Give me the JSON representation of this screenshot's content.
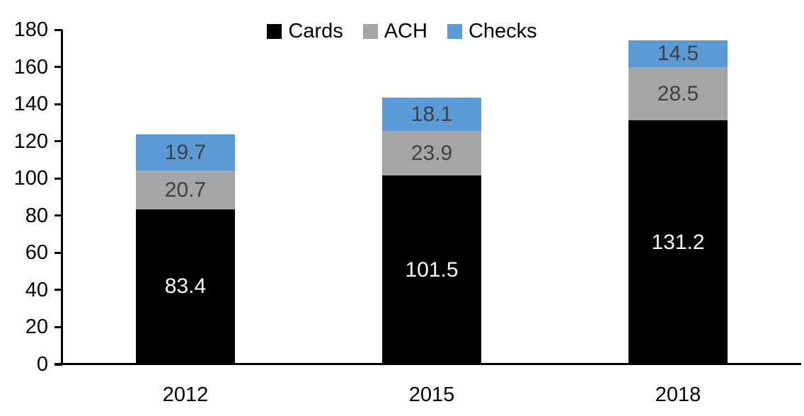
{
  "chart_data": {
    "type": "bar",
    "stacked": true,
    "title": "",
    "xlabel": "",
    "ylabel": "",
    "categories": [
      "2012",
      "2015",
      "2018"
    ],
    "series": [
      {
        "name": "Cards",
        "color": "#000000",
        "label_color": "#FFFFFF",
        "values": [
          83.4,
          101.5,
          131.2
        ]
      },
      {
        "name": "ACH",
        "color": "#A5A5A5",
        "label_color": "#404040",
        "values": [
          20.7,
          23.9,
          28.5
        ]
      },
      {
        "name": "Checks",
        "color": "#5B9BD5",
        "label_color": "#404040",
        "values": [
          19.7,
          18.1,
          14.5
        ]
      }
    ],
    "totals": [
      123.8,
      143.5,
      174.2
    ],
    "ylim": [
      0,
      180
    ],
    "yticks": [
      0,
      20,
      40,
      60,
      80,
      100,
      120,
      140,
      160,
      180
    ],
    "grid": false,
    "legend_position": "top-center",
    "data_labels": true
  },
  "colors": {
    "axis": "#000000",
    "background": "#FFFFFF",
    "cards": "#000000",
    "ach": "#A5A5A5",
    "checks": "#5B9BD5",
    "label_on_dark": "#FFFFFF",
    "label_on_light": "#404040"
  }
}
